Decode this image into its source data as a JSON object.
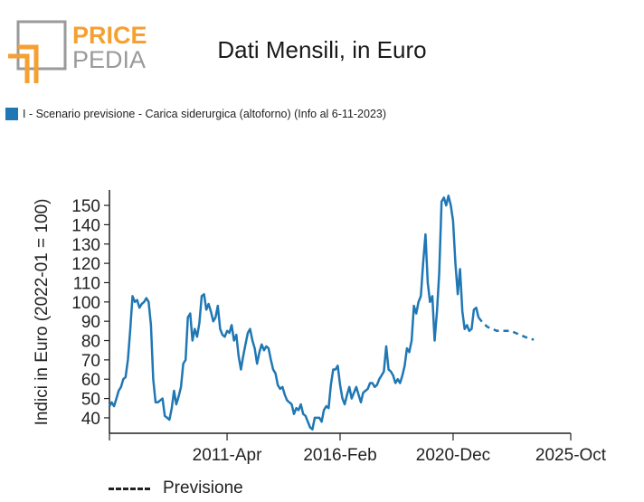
{
  "logo": {
    "word1": "PRICE",
    "word2": "PEDIA",
    "brand_color": "#f5a031",
    "grey_color": "#9a9a9a"
  },
  "chart_data": {
    "type": "line",
    "title": "Dati Mensili, in Euro",
    "ylabel": "Indici in Euro (2022-01 = 100)",
    "xlabel": "",
    "ylim": [
      32,
      158
    ],
    "yticks": [
      40,
      50,
      60,
      70,
      80,
      90,
      100,
      110,
      120,
      130,
      140,
      150
    ],
    "xlim": [
      0,
      200
    ],
    "xticks": [
      {
        "pos": 0,
        "label": ""
      },
      {
        "pos": 51,
        "label": "2011-Apr"
      },
      {
        "pos": 100,
        "label": "2016-Feb"
      },
      {
        "pos": 149,
        "label": "2020-Dec"
      },
      {
        "pos": 200,
        "label": "2025-Oct"
      }
    ],
    "series": [
      {
        "name": "I - Scenario previsione - Carica siderurgica (altoforno) (Info al 6-11-2023)",
        "color": "#1f77b4",
        "values": [
          [
            0,
            46
          ],
          [
            1,
            48
          ],
          [
            2,
            46
          ],
          [
            3,
            50
          ],
          [
            4,
            54
          ],
          [
            5,
            56
          ],
          [
            6,
            60
          ],
          [
            7,
            61
          ],
          [
            8,
            70
          ],
          [
            9,
            85
          ],
          [
            10,
            103
          ],
          [
            11,
            100
          ],
          [
            12,
            101
          ],
          [
            13,
            97
          ],
          [
            14,
            99
          ],
          [
            15,
            100
          ],
          [
            16,
            102
          ],
          [
            17,
            100
          ],
          [
            18,
            88
          ],
          [
            19,
            60
          ],
          [
            20,
            48
          ],
          [
            21,
            48
          ],
          [
            22,
            49
          ],
          [
            23,
            50
          ],
          [
            24,
            41
          ],
          [
            25,
            40
          ],
          [
            26,
            39
          ],
          [
            27,
            45
          ],
          [
            28,
            54
          ],
          [
            29,
            47
          ],
          [
            30,
            51
          ],
          [
            31,
            56
          ],
          [
            32,
            68
          ],
          [
            33,
            70
          ],
          [
            34,
            92
          ],
          [
            35,
            94
          ],
          [
            36,
            80
          ],
          [
            37,
            86
          ],
          [
            38,
            82
          ],
          [
            39,
            89
          ],
          [
            40,
            103
          ],
          [
            41,
            104
          ],
          [
            42,
            96
          ],
          [
            43,
            99
          ],
          [
            44,
            95
          ],
          [
            45,
            90
          ],
          [
            46,
            92
          ],
          [
            47,
            98
          ],
          [
            48,
            86
          ],
          [
            49,
            83
          ],
          [
            50,
            82
          ],
          [
            51,
            85
          ],
          [
            52,
            84
          ],
          [
            53,
            88
          ],
          [
            54,
            80
          ],
          [
            55,
            83
          ],
          [
            56,
            72
          ],
          [
            57,
            65
          ],
          [
            58,
            72
          ],
          [
            59,
            78
          ],
          [
            60,
            84
          ],
          [
            61,
            86
          ],
          [
            62,
            80
          ],
          [
            63,
            76
          ],
          [
            64,
            68
          ],
          [
            65,
            74
          ],
          [
            66,
            78
          ],
          [
            67,
            75
          ],
          [
            68,
            77
          ],
          [
            69,
            76
          ],
          [
            70,
            70
          ],
          [
            71,
            65
          ],
          [
            72,
            63
          ],
          [
            73,
            57
          ],
          [
            74,
            55
          ],
          [
            75,
            56
          ],
          [
            76,
            52
          ],
          [
            77,
            49
          ],
          [
            78,
            48
          ],
          [
            79,
            47
          ],
          [
            80,
            42
          ],
          [
            81,
            45
          ],
          [
            82,
            44
          ],
          [
            83,
            47
          ],
          [
            84,
            42
          ],
          [
            85,
            41
          ],
          [
            86,
            38
          ],
          [
            87,
            35
          ],
          [
            88,
            34
          ],
          [
            89,
            40
          ],
          [
            90,
            40
          ],
          [
            91,
            40
          ],
          [
            92,
            38
          ],
          [
            93,
            44
          ],
          [
            94,
            46
          ],
          [
            95,
            45
          ],
          [
            96,
            57
          ],
          [
            97,
            65
          ],
          [
            98,
            65
          ],
          [
            99,
            67
          ],
          [
            100,
            57
          ],
          [
            101,
            50
          ],
          [
            102,
            47
          ],
          [
            103,
            52
          ],
          [
            104,
            56
          ],
          [
            105,
            50
          ],
          [
            106,
            53
          ],
          [
            107,
            56
          ],
          [
            108,
            52
          ],
          [
            109,
            48
          ],
          [
            110,
            53
          ],
          [
            111,
            54
          ],
          [
            112,
            55
          ],
          [
            113,
            58
          ],
          [
            114,
            58
          ],
          [
            115,
            56
          ],
          [
            116,
            57
          ],
          [
            117,
            60
          ],
          [
            118,
            62
          ],
          [
            119,
            64
          ],
          [
            120,
            77
          ],
          [
            121,
            65
          ],
          [
            122,
            64
          ],
          [
            123,
            62
          ],
          [
            124,
            58
          ],
          [
            125,
            60
          ],
          [
            126,
            58
          ],
          [
            127,
            62
          ],
          [
            128,
            67
          ],
          [
            129,
            76
          ],
          [
            130,
            74
          ],
          [
            131,
            80
          ],
          [
            132,
            98
          ],
          [
            133,
            94
          ],
          [
            134,
            100
          ],
          [
            135,
            103
          ],
          [
            136,
            120
          ],
          [
            137,
            135
          ],
          [
            138,
            110
          ],
          [
            139,
            100
          ],
          [
            140,
            103
          ],
          [
            141,
            80
          ],
          [
            142,
            95
          ],
          [
            143,
            115
          ],
          [
            144,
            152
          ],
          [
            145,
            154
          ],
          [
            146,
            150
          ],
          [
            147,
            155
          ],
          [
            148,
            150
          ],
          [
            149,
            142
          ],
          [
            150,
            120
          ],
          [
            151,
            104
          ],
          [
            152,
            117
          ],
          [
            153,
            95
          ],
          [
            154,
            86
          ],
          [
            155,
            88
          ],
          [
            156,
            85
          ],
          [
            157,
            86
          ],
          [
            158,
            96
          ],
          [
            159,
            97
          ],
          [
            160,
            92
          ]
        ]
      },
      {
        "name": "Previsione",
        "color": "#1f77b4",
        "dashed": true,
        "values": [
          [
            160,
            92
          ],
          [
            162,
            89
          ],
          [
            164,
            87
          ],
          [
            166,
            86
          ],
          [
            168,
            85
          ],
          [
            170,
            85
          ],
          [
            172,
            85
          ],
          [
            174,
            85
          ],
          [
            176,
            84
          ],
          [
            178,
            83
          ],
          [
            180,
            82
          ],
          [
            182,
            81
          ],
          [
            184,
            80.5
          ]
        ]
      }
    ],
    "legend": {
      "entries": [
        "I - Scenario previsione - Carica siderurgica (altoforno) (Info al 6-11-2023)"
      ],
      "placement": "top-left",
      "swatch_color": "#1f77b4"
    },
    "annotations": [
      {
        "style": "dashed",
        "label": "Previsione"
      }
    ]
  }
}
